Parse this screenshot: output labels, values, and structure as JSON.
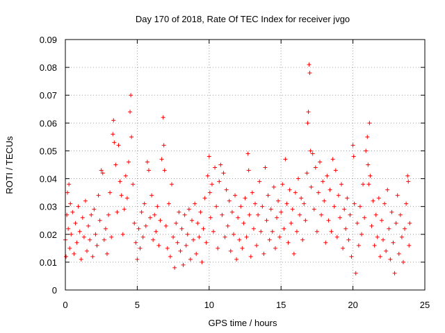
{
  "chart_data": {
    "type": "scatter",
    "title": "Day 170 of 2018, Rate Of TEC Index for receiver jvgo",
    "xlabel": "GPS time / hours",
    "ylabel": "ROTI / TECUs",
    "xlim": [
      0,
      25
    ],
    "ylim": [
      0,
      0.09
    ],
    "x_ticks": [
      0,
      5,
      10,
      15,
      20,
      25
    ],
    "y_ticks": [
      0,
      0.01,
      0.02,
      0.03,
      0.04,
      0.05,
      0.06,
      0.07,
      0.08,
      0.09
    ],
    "x_tick_labels": [
      "0",
      "5",
      "10",
      "15",
      "20",
      "25"
    ],
    "y_tick_labels": [
      "0",
      "0.01",
      "0.02",
      "0.03",
      "0.04",
      "0.05",
      "0.06",
      "0.07",
      "0.08",
      "0.09"
    ],
    "grid": true,
    "marker": "plus",
    "color": "#ff0000",
    "series": [
      {
        "points": [
          [
            0.0,
            0.018
          ],
          [
            0.05,
            0.012
          ],
          [
            0.1,
            0.027
          ],
          [
            0.15,
            0.035
          ],
          [
            0.2,
            0.022
          ],
          [
            0.25,
            0.038
          ],
          [
            0.3,
            0.015
          ],
          [
            0.35,
            0.031
          ],
          [
            0.4,
            0.02
          ],
          [
            0.5,
            0.028
          ],
          [
            0.6,
            0.013
          ],
          [
            0.7,
            0.024
          ],
          [
            0.8,
            0.017
          ],
          [
            0.9,
            0.03
          ],
          [
            1.0,
            0.021
          ],
          [
            1.1,
            0.011
          ],
          [
            1.2,
            0.026
          ],
          [
            1.3,
            0.019
          ],
          [
            1.4,
            0.032
          ],
          [
            1.5,
            0.014
          ],
          [
            1.6,
            0.023
          ],
          [
            1.7,
            0.018
          ],
          [
            1.8,
            0.027
          ],
          [
            1.9,
            0.012
          ],
          [
            2.0,
            0.029
          ],
          [
            2.1,
            0.02
          ],
          [
            2.2,
            0.016
          ],
          [
            2.3,
            0.034
          ],
          [
            2.4,
            0.025
          ],
          [
            2.5,
            0.043
          ],
          [
            2.6,
            0.042
          ],
          [
            2.7,
            0.018
          ],
          [
            2.8,
            0.022
          ],
          [
            2.9,
            0.013
          ],
          [
            3.0,
            0.027
          ],
          [
            3.1,
            0.035
          ],
          [
            3.2,
            0.019
          ],
          [
            3.3,
            0.056
          ],
          [
            3.35,
            0.061
          ],
          [
            3.4,
            0.053
          ],
          [
            3.5,
            0.045
          ],
          [
            3.6,
            0.028
          ],
          [
            3.7,
            0.052
          ],
          [
            3.8,
            0.039
          ],
          [
            3.9,
            0.034
          ],
          [
            4.0,
            0.02
          ],
          [
            4.1,
            0.029
          ],
          [
            4.2,
            0.041
          ],
          [
            4.3,
            0.033
          ],
          [
            4.4,
            0.046
          ],
          [
            4.5,
            0.064
          ],
          [
            4.55,
            0.07
          ],
          [
            4.6,
            0.055
          ],
          [
            4.7,
            0.038
          ],
          [
            4.8,
            0.024
          ],
          [
            4.9,
            0.017
          ],
          [
            5.0,
            0.011
          ],
          [
            5.1,
            0.022
          ],
          [
            5.2,
            0.015
          ],
          [
            5.3,
            0.028
          ],
          [
            5.4,
            0.019
          ],
          [
            5.5,
            0.031
          ],
          [
            5.6,
            0.023
          ],
          [
            5.7,
            0.046
          ],
          [
            5.8,
            0.043
          ],
          [
            5.9,
            0.026
          ],
          [
            6.0,
            0.034
          ],
          [
            6.1,
            0.018
          ],
          [
            6.2,
            0.027
          ],
          [
            6.3,
            0.021
          ],
          [
            6.4,
            0.03
          ],
          [
            6.5,
            0.016
          ],
          [
            6.6,
            0.025
          ],
          [
            6.7,
            0.047
          ],
          [
            6.8,
            0.062
          ],
          [
            6.85,
            0.052
          ],
          [
            6.9,
            0.043
          ],
          [
            7.0,
            0.023
          ],
          [
            7.1,
            0.015
          ],
          [
            7.2,
            0.031
          ],
          [
            7.3,
            0.012
          ],
          [
            7.4,
            0.038
          ],
          [
            7.5,
            0.019
          ],
          [
            7.6,
            0.008
          ],
          [
            7.7,
            0.024
          ],
          [
            7.8,
            0.017
          ],
          [
            7.9,
            0.028
          ],
          [
            8.0,
            0.014
          ],
          [
            8.1,
            0.022
          ],
          [
            8.2,
            0.009
          ],
          [
            8.3,
            0.027
          ],
          [
            8.4,
            0.016
          ],
          [
            8.5,
            0.02
          ],
          [
            8.6,
            0.029
          ],
          [
            8.7,
            0.011
          ],
          [
            8.8,
            0.025
          ],
          [
            8.9,
            0.018
          ],
          [
            9.0,
            0.031
          ],
          [
            9.1,
            0.013
          ],
          [
            9.2,
            0.024
          ],
          [
            9.3,
            0.019
          ],
          [
            9.4,
            0.028
          ],
          [
            9.5,
            0.01
          ],
          [
            9.6,
            0.022
          ],
          [
            9.7,
            0.033
          ],
          [
            9.8,
            0.017
          ],
          [
            9.9,
            0.041
          ],
          [
            10.0,
            0.048
          ],
          [
            10.05,
            0.035
          ],
          [
            10.1,
            0.026
          ],
          [
            10.2,
            0.038
          ],
          [
            10.3,
            0.021
          ],
          [
            10.4,
            0.044
          ],
          [
            10.5,
            0.03
          ],
          [
            10.6,
            0.015
          ],
          [
            10.7,
            0.039
          ],
          [
            10.8,
            0.045
          ],
          [
            10.9,
            0.027
          ],
          [
            11.0,
            0.042
          ],
          [
            11.1,
            0.019
          ],
          [
            11.2,
            0.036
          ],
          [
            11.3,
            0.023
          ],
          [
            11.4,
            0.032
          ],
          [
            11.5,
            0.014
          ],
          [
            11.6,
            0.028
          ],
          [
            11.7,
            0.02
          ],
          [
            11.8,
            0.034
          ],
          [
            11.9,
            0.011
          ],
          [
            12.0,
            0.026
          ],
          [
            12.1,
            0.018
          ],
          [
            12.2,
            0.03
          ],
          [
            12.3,
            0.015
          ],
          [
            12.4,
            0.024
          ],
          [
            12.5,
            0.033
          ],
          [
            12.6,
            0.019
          ],
          [
            12.7,
            0.049
          ],
          [
            12.75,
            0.043
          ],
          [
            12.8,
            0.027
          ],
          [
            12.9,
            0.012
          ],
          [
            13.0,
            0.035
          ],
          [
            13.1,
            0.022
          ],
          [
            13.2,
            0.031
          ],
          [
            13.3,
            0.016
          ],
          [
            13.4,
            0.027
          ],
          [
            13.5,
            0.039
          ],
          [
            13.6,
            0.021
          ],
          [
            13.7,
            0.03
          ],
          [
            13.8,
            0.013
          ],
          [
            13.9,
            0.044
          ],
          [
            14.0,
            0.025
          ],
          [
            14.1,
            0.034
          ],
          [
            14.2,
            0.018
          ],
          [
            14.3,
            0.029
          ],
          [
            14.4,
            0.021
          ],
          [
            14.5,
            0.037
          ],
          [
            14.6,
            0.015
          ],
          [
            14.7,
            0.026
          ],
          [
            14.8,
            0.032
          ],
          [
            14.9,
            0.019
          ],
          [
            15.0,
            0.028
          ],
          [
            15.1,
            0.038
          ],
          [
            15.2,
            0.022
          ],
          [
            15.3,
            0.047
          ],
          [
            15.4,
            0.031
          ],
          [
            15.5,
            0.017
          ],
          [
            15.6,
            0.036
          ],
          [
            15.7,
            0.024
          ],
          [
            15.8,
            0.029
          ],
          [
            15.9,
            0.013
          ],
          [
            16.0,
            0.035
          ],
          [
            16.1,
            0.021
          ],
          [
            16.2,
            0.04
          ],
          [
            16.3,
            0.027
          ],
          [
            16.4,
            0.033
          ],
          [
            16.5,
            0.018
          ],
          [
            16.6,
            0.031
          ],
          [
            16.7,
            0.025
          ],
          [
            16.8,
            0.042
          ],
          [
            16.85,
            0.06
          ],
          [
            16.9,
            0.064
          ],
          [
            16.95,
            0.081
          ],
          [
            17.0,
            0.078
          ],
          [
            17.05,
            0.05
          ],
          [
            17.1,
            0.037
          ],
          [
            17.2,
            0.049
          ],
          [
            17.3,
            0.029
          ],
          [
            17.4,
            0.044
          ],
          [
            17.5,
            0.021
          ],
          [
            17.6,
            0.035
          ],
          [
            17.7,
            0.046
          ],
          [
            17.8,
            0.027
          ],
          [
            17.9,
            0.039
          ],
          [
            18.0,
            0.032
          ],
          [
            18.1,
            0.017
          ],
          [
            18.2,
            0.041
          ],
          [
            18.3,
            0.025
          ],
          [
            18.4,
            0.036
          ],
          [
            18.5,
            0.021
          ],
          [
            18.6,
            0.047
          ],
          [
            18.7,
            0.03
          ],
          [
            18.8,
            0.043
          ],
          [
            18.9,
            0.019
          ],
          [
            19.0,
            0.034
          ],
          [
            19.1,
            0.026
          ],
          [
            19.2,
            0.038
          ],
          [
            19.3,
            0.015
          ],
          [
            19.4,
            0.029
          ],
          [
            19.5,
            0.022
          ],
          [
            19.6,
            0.033
          ],
          [
            19.7,
            0.018
          ],
          [
            19.8,
            0.027
          ],
          [
            19.9,
            0.012
          ],
          [
            20.0,
            0.052
          ],
          [
            20.05,
            0.048
          ],
          [
            20.1,
            0.031
          ],
          [
            20.2,
            0.006
          ],
          [
            20.3,
            0.024
          ],
          [
            20.4,
            0.016
          ],
          [
            20.5,
            0.03
          ],
          [
            20.6,
            0.02
          ],
          [
            20.7,
            0.038
          ],
          [
            20.8,
            0.026
          ],
          [
            20.9,
            0.05
          ],
          [
            21.0,
            0.055
          ],
          [
            21.05,
            0.045
          ],
          [
            21.1,
            0.038
          ],
          [
            21.15,
            0.06
          ],
          [
            21.2,
            0.041
          ],
          [
            21.3,
            0.023
          ],
          [
            21.4,
            0.032
          ],
          [
            21.5,
            0.016
          ],
          [
            21.6,
            0.027
          ],
          [
            21.7,
            0.019
          ],
          [
            21.8,
            0.033
          ],
          [
            21.9,
            0.012
          ],
          [
            22.0,
            0.025
          ],
          [
            22.1,
            0.018
          ],
          [
            22.2,
            0.031
          ],
          [
            22.3,
            0.014
          ],
          [
            22.4,
            0.036
          ],
          [
            22.5,
            0.022
          ],
          [
            22.6,
            0.011
          ],
          [
            22.7,
            0.028
          ],
          [
            22.8,
            0.017
          ],
          [
            22.9,
            0.006
          ],
          [
            23.0,
            0.024
          ],
          [
            23.1,
            0.034
          ],
          [
            23.2,
            0.013
          ],
          [
            23.3,
            0.027
          ],
          [
            23.4,
            0.019
          ],
          [
            23.5,
            0.01
          ],
          [
            23.6,
            0.022
          ],
          [
            23.7,
            0.031
          ],
          [
            23.8,
            0.041
          ],
          [
            23.85,
            0.039
          ],
          [
            23.9,
            0.016
          ],
          [
            23.95,
            0.024
          ]
        ]
      }
    ]
  }
}
